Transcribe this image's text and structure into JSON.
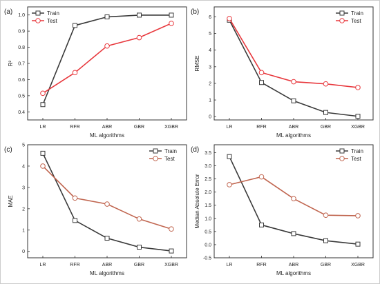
{
  "colors": {
    "train": "#3a3a3a",
    "test": "#e8383d",
    "test_muted": "#c0654f"
  },
  "chart_data": [
    {
      "type": "line",
      "panel_label": "(a)",
      "categories": [
        "LR",
        "RFR",
        "ABR",
        "GBR",
        "XGBR"
      ],
      "xlabel": "ML algorithms",
      "ylabel": "R²",
      "ylim": [
        0.35,
        1.05
      ],
      "yticks": [
        "0.4",
        "0.5",
        "0.6",
        "0.7",
        "0.8",
        "0.9",
        "1.0"
      ],
      "legend_position": "top-left",
      "series": [
        {
          "name": "Train",
          "values": [
            0.445,
            0.935,
            0.988,
            0.999,
            0.999
          ]
        },
        {
          "name": "Test",
          "values": [
            0.515,
            0.643,
            0.808,
            0.86,
            0.948
          ]
        }
      ]
    },
    {
      "type": "line",
      "panel_label": "(b)",
      "categories": [
        "LR",
        "RFR",
        "ABR",
        "GBR",
        "XGBR"
      ],
      "xlabel": "ML algorithms",
      "ylabel": "RMSE",
      "ylim": [
        -0.2,
        6.6
      ],
      "yticks": [
        "0",
        "1",
        "2",
        "3",
        "4",
        "5",
        "6"
      ],
      "legend_position": "top-right",
      "series": [
        {
          "name": "Train",
          "values": [
            5.8,
            2.05,
            0.95,
            0.25,
            0.02
          ]
        },
        {
          "name": "Test",
          "values": [
            5.9,
            2.65,
            2.1,
            1.97,
            1.75
          ]
        }
      ]
    },
    {
      "type": "line",
      "panel_label": "(c)",
      "categories": [
        "LR",
        "RFR",
        "ABR",
        "GBR",
        "XGBR"
      ],
      "xlabel": "ML algorithms",
      "ylabel": "MAE",
      "ylim": [
        -0.3,
        5.0
      ],
      "yticks": [
        "0",
        "1",
        "2",
        "3",
        "4",
        "5"
      ],
      "legend_position": "top-right",
      "series": [
        {
          "name": "Train",
          "values": [
            4.6,
            1.45,
            0.62,
            0.2,
            0.02
          ]
        },
        {
          "name": "Test",
          "values": [
            4.0,
            2.5,
            2.22,
            1.52,
            1.05
          ]
        }
      ]
    },
    {
      "type": "line",
      "panel_label": "(d)",
      "categories": [
        "LR",
        "RFR",
        "ABR",
        "GBR",
        "XGBR"
      ],
      "xlabel": "ML algorithms",
      "ylabel": "Median Absolute Error",
      "ylim": [
        -0.5,
        3.8
      ],
      "yticks": [
        "-0.5",
        "0.0",
        "0.5",
        "1.0",
        "1.5",
        "2.0",
        "2.5",
        "3.0",
        "3.5"
      ],
      "legend_position": "top-right",
      "series": [
        {
          "name": "Train",
          "values": [
            3.35,
            0.75,
            0.42,
            0.15,
            0.02
          ]
        },
        {
          "name": "Test",
          "values": [
            2.28,
            2.58,
            1.75,
            1.12,
            1.1
          ]
        }
      ]
    }
  ]
}
